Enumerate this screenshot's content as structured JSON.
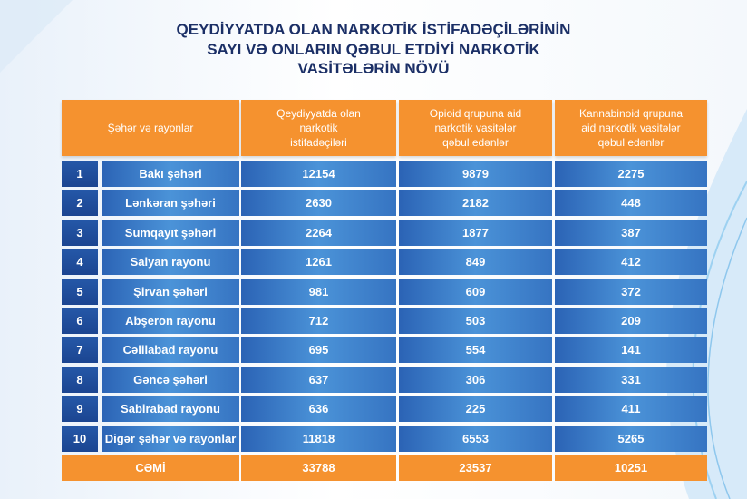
{
  "title": [
    "QEYDİYYATDA OLAN NARKOTİK İSTİFADƏÇİLƏRİNİN",
    "SAYI VƏ ONLARIN QƏBUL ETDİYİ NARKOTİK",
    "VASİTƏLƏRİN NÖVÜ"
  ],
  "table": {
    "header": [
      [
        "Şəhər və rayonlar"
      ],
      [
        "Qeydiyyatda olan",
        "narkotik",
        "istifadəçiləri"
      ],
      [
        "Opioid qrupuna aid",
        "narkotik vasitələr",
        "qəbul edənlər"
      ],
      [
        "Kannabinoid qrupuna",
        "aid narkotik vasitələr",
        "qəbul edənlər"
      ]
    ],
    "rows": [
      [
        1,
        "Bakı şəhəri",
        12154,
        9879,
        2275
      ],
      [
        2,
        "Lənkəran şəhəri",
        2630,
        2182,
        448
      ],
      [
        3,
        "Sumqayıt şəhəri",
        2264,
        1877,
        387
      ],
      [
        4,
        "Salyan rayonu",
        1261,
        849,
        412
      ],
      [
        5,
        "Şirvan şəhəri",
        981,
        609,
        372
      ],
      [
        6,
        "Abşeron rayonu",
        712,
        503,
        209
      ],
      [
        7,
        "Cəlilabad rayonu",
        695,
        554,
        141
      ],
      [
        8,
        "Gəncə şəhəri",
        637,
        306,
        331
      ],
      [
        9,
        "Sabirabad rayonu",
        636,
        225,
        411
      ],
      [
        10,
        "Digər şəhər və rayonlar",
        11818,
        6553,
        5265
      ]
    ],
    "total": [
      "CƏMİ",
      33788,
      23537,
      10251
    ]
  }
}
